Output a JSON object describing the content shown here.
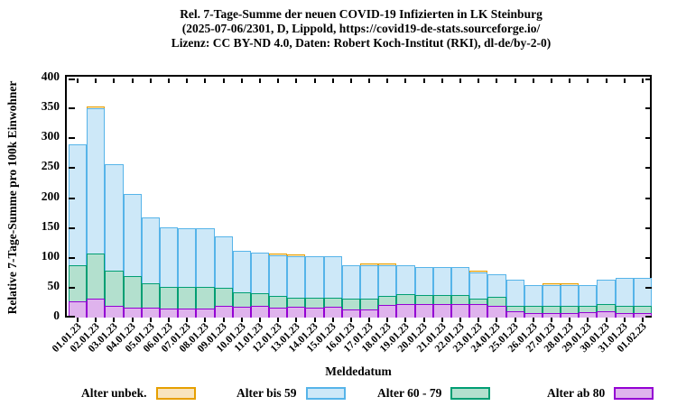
{
  "title_lines": [
    "Rel. 7-Tage-Summe der neuen COVID-19 Infizierten in LK Steinburg",
    "(2025-07-06/2301, D, Lippold, https://covid19-de-stats.sourceforge.io/",
    "Lizenz: CC BY-ND 4.0, Daten: Robert Koch-Institut (RKI), dl-de/by-2-0)"
  ],
  "y_axis": {
    "label": "Relative 7-Tage-Summe pro 100k Einwohner",
    "ticks": [
      0,
      50,
      100,
      150,
      200,
      250,
      300,
      350,
      400
    ],
    "min": 0,
    "max": 400
  },
  "x_axis": {
    "label": "Meldedatum"
  },
  "legend": [
    {
      "label": "Alter unbek.",
      "fill": "#F8E4BE",
      "stroke": "#E69F00"
    },
    {
      "label": "Alter bis 59",
      "fill": "#CDE8F8",
      "stroke": "#56B4E9"
    },
    {
      "label": "Alter 60 - 79",
      "fill": "#B3E0CE",
      "stroke": "#009E73"
    },
    {
      "label": "Alter ab 80",
      "fill": "#DFB3ED",
      "stroke": "#9400D3"
    }
  ],
  "chart_data": {
    "type": "bar",
    "stacked": true,
    "title": "Rel. 7-Tage-Summe der neuen COVID-19 Infizierten in LK Steinburg",
    "xlabel": "Meldedatum",
    "ylabel": "Relative 7-Tage-Summe pro 100k Einwohner",
    "ylim": [
      0,
      400
    ],
    "grid": false,
    "legend_position": "bottom",
    "categories": [
      "01.01.23",
      "02.01.23",
      "03.01.23",
      "04.01.23",
      "05.01.23",
      "06.01.23",
      "07.01.23",
      "08.01.23",
      "09.01.23",
      "10.01.23",
      "11.01.23",
      "12.01.23",
      "13.01.23",
      "14.01.23",
      "15.01.23",
      "16.01.23",
      "17.01.23",
      "18.01.23",
      "19.01.23",
      "20.01.23",
      "21.01.23",
      "22.01.23",
      "23.01.23",
      "24.01.23",
      "25.01.23",
      "26.01.23",
      "27.01.23",
      "28.01.23",
      "29.01.23",
      "30.01.23",
      "31.01.23",
      "01.02.23"
    ],
    "series": [
      {
        "name": "Alter ab 80",
        "color_ref": 3,
        "values": [
          27,
          32,
          19,
          16,
          16,
          15,
          15,
          15,
          20,
          18,
          19,
          17,
          18,
          17,
          18,
          14,
          14,
          21,
          23,
          23,
          23,
          23,
          23,
          20,
          10,
          8,
          8,
          8,
          9,
          10,
          7,
          7
        ]
      },
      {
        "name": "Alter 60 - 79",
        "color_ref": 2,
        "values": [
          61,
          75,
          60,
          54,
          42,
          37,
          37,
          36,
          30,
          25,
          22,
          19,
          15,
          16,
          15,
          17,
          17,
          16,
          16,
          15,
          15,
          15,
          9,
          14,
          10,
          11,
          11,
          11,
          10,
          13,
          13,
          13
        ]
      },
      {
        "name": "Alter bis 59",
        "color_ref": 1,
        "values": [
          202,
          243,
          177,
          137,
          110,
          99,
          98,
          99,
          86,
          69,
          68,
          68,
          69,
          69,
          69,
          56,
          56,
          50,
          48,
          46,
          46,
          46,
          43,
          38,
          44,
          35,
          36,
          36,
          36,
          40,
          46,
          47
        ]
      },
      {
        "name": "Alter unbek.",
        "color_ref": 0,
        "values": [
          0,
          1,
          0,
          0,
          0,
          0,
          0,
          0,
          0,
          0,
          0,
          1,
          1,
          0,
          0,
          0,
          1,
          1,
          0,
          0,
          0,
          0,
          1,
          0,
          0,
          0,
          1,
          1,
          0,
          0,
          0,
          0
        ]
      }
    ],
    "totals": [
      290,
      351,
      256,
      207,
      168,
      151,
      150,
      150,
      136,
      112,
      109,
      105,
      103,
      102,
      102,
      87,
      88,
      88,
      87,
      84,
      84,
      84,
      76,
      72,
      64,
      54,
      56,
      55,
      55,
      63,
      66,
      67
    ]
  }
}
